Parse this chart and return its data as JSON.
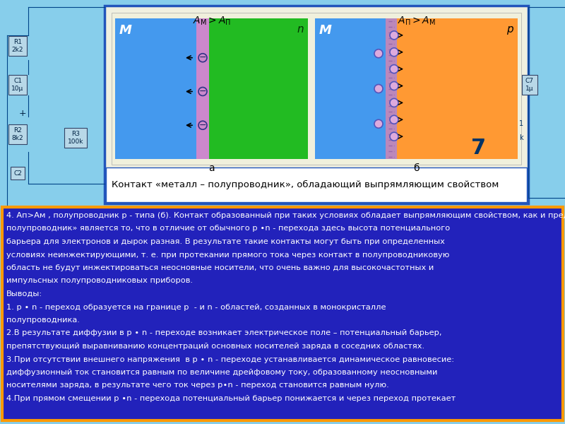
{
  "bg_color": "#87CEEB",
  "top_panel_bg": "#F0F0E0",
  "top_panel_border": "#2255BB",
  "bottom_panel_bg": "#2222BB",
  "bottom_panel_border": "#FF9900",
  "diag_a_metal_color": "#4499EE",
  "diag_a_junction_color": "#CC88CC",
  "diag_a_semi_color": "#22BB22",
  "diag_b_metal_color": "#4499EE",
  "diag_b_junction_color": "#BB88BB",
  "diag_b_semi_color": "#FF9933",
  "caption": "Контакт «металл – полупроводник», обладающий выпрямляющим свойством",
  "bottom_lines": [
    "4. Ап>Ам , полупроводник p - типа (б). Контакт образованный при таких условиях обладает выпрямляющим свойством, как и предыдущий. Отличительной особенностью контакта «металл –",
    "полупроводник» является то, что в отличие от обычного p ∙n - перехода здесь высота потенциального",
    "барьера для электронов и дырок разная. В результате такие контакты могут быть при определенных",
    "условиях неинжектирующими, т. е. при протекании прямого тока через контакт в полупроводниковую",
    "область не будут инжектироваться неосновные носители, что очень важно для высокочастотных и",
    "импульсных полупроводниковых приборов.",
    "Выводы:",
    "1. p ∙ n - переход образуется на границе p  - и n - областей, созданных в монокристалле",
    "полупроводника.",
    "2.В результате диффузии в p ∙ n - переходе возникает электрическое поле – потенциальный барьер,",
    "препятствующий выравниванию концентраций основных носителей заряда в соседних областях.",
    "3.При отсутствии внешнего напряжения  в p ∙ n - переходе устанавливается динамическое равновесие:",
    "диффузионный ток становится равным по величине дрейфовому току, образованному неосновными",
    "носителями заряда, в результате чего ток через p∙n - переход становится равным нулю.",
    "4.При прямом смещении p ∙n - перехода потенциальный барьер понижается и через переход протекает"
  ]
}
